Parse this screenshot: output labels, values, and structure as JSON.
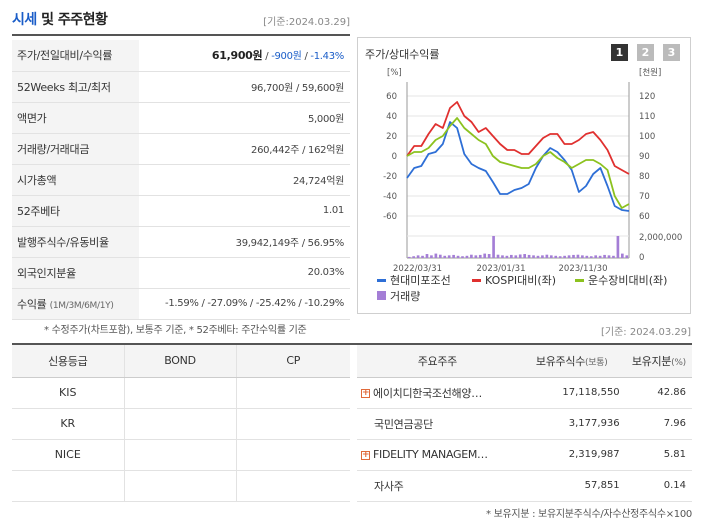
{
  "header": {
    "title_accent": "시세",
    "title_rest": " 및 주주현황",
    "date": "[기준:2024.03.29]"
  },
  "info_rows": [
    {
      "label": "주가/전일대비/수익률",
      "price": "61,900원",
      "sep1": " / ",
      "change": "-900원",
      "sep2": " / ",
      "rate": "-1.43%"
    },
    {
      "label": "52Weeks 최고/최저",
      "value": "96,700원 / 59,600원"
    },
    {
      "label": "액면가",
      "value": "5,000원"
    },
    {
      "label": "거래량/거래대금",
      "value": "260,442주 / 162억원"
    },
    {
      "label": "시가총액",
      "value": "24,724억원"
    },
    {
      "label": "52주베타",
      "value": "1.01"
    },
    {
      "label": "발행주식수/유동비율",
      "value": "39,942,149주 / 56.95%"
    },
    {
      "label": "외국인지분율",
      "value": "20.03%"
    },
    {
      "label": "수익률",
      "sub": "(1M/3M/6M/1Y)",
      "value": "-1.59% / -27.09% / -25.42% / -10.29%"
    }
  ],
  "note1": "* 수정주가(차트포함), 보통주 기준, * 52주베타: 주간수익률 기준",
  "chart_panel": {
    "title": "주가/상대수익률",
    "pages": [
      "1",
      "2",
      "3"
    ]
  },
  "chart_data": {
    "type": "line",
    "left_axis_unit": "[%]",
    "right_axis_unit": "[천원]",
    "left_ticks": [
      "60",
      "40",
      "20",
      "0",
      "-20",
      "-40",
      "-60"
    ],
    "right_ticks": [
      "120",
      "110",
      "100",
      "90",
      "80",
      "70",
      "60"
    ],
    "volume_ticks": [
      "2,000,000",
      "0"
    ],
    "x_labels": [
      "2022/03/31",
      "2023/01/31",
      "2023/11/30"
    ],
    "ylim_left": [
      -60,
      60
    ],
    "ylim_right": [
      60,
      120
    ],
    "series": [
      {
        "name": "현대미포조선",
        "color": "#2e6fd6",
        "values": [
          -22,
          -12,
          -10,
          2,
          4,
          12,
          34,
          28,
          2,
          -8,
          -12,
          -15,
          -26,
          -38,
          -38,
          -34,
          -32,
          -28,
          -12,
          0,
          8,
          4,
          -4,
          -14,
          -36,
          -30,
          -18,
          -12,
          -30,
          -50,
          -54,
          -55
        ]
      },
      {
        "name": "KOSPI대비(좌)",
        "color": "#e0302f",
        "values": [
          0,
          10,
          10,
          22,
          32,
          28,
          48,
          54,
          40,
          34,
          24,
          28,
          20,
          12,
          6,
          6,
          2,
          2,
          10,
          18,
          22,
          22,
          12,
          12,
          16,
          22,
          24,
          16,
          6,
          -10,
          -14,
          -18
        ]
      },
      {
        "name": "운수장비대비(좌)",
        "color": "#8cc21f",
        "values": [
          0,
          4,
          4,
          8,
          16,
          20,
          30,
          38,
          28,
          22,
          16,
          12,
          0,
          -6,
          -8,
          -10,
          -12,
          -12,
          -8,
          0,
          4,
          -2,
          -6,
          -12,
          -8,
          -4,
          -4,
          -8,
          -14,
          -40,
          -52,
          -48
        ]
      }
    ],
    "volume": {
      "name": "거래량",
      "color": "#a47ed6",
      "values": [
        0.05,
        0.08,
        0.12,
        0.1,
        0.18,
        0.12,
        0.2,
        0.15,
        0.1,
        0.12,
        0.14,
        0.1,
        0.08,
        0.1,
        0.15,
        0.12,
        0.14,
        0.2,
        0.18,
        1,
        0.15,
        0.12,
        0.1,
        0.14,
        0.12,
        0.16,
        0.18,
        0.14,
        0.12,
        0.1,
        0.12,
        0.15,
        0.12,
        0.1,
        0.08,
        0.1,
        0.12,
        0.14,
        0.15,
        0.12,
        0.1,
        0.08,
        0.12,
        0.1,
        0.14,
        0.12,
        0.1,
        1,
        0.2,
        0.12
      ]
    }
  },
  "date2": "[기준: 2024.03.29]",
  "credit": {
    "headers": [
      "신용등급",
      "BOND",
      "CP"
    ],
    "rows": [
      {
        "agency": "KIS",
        "bond": "",
        "cp": ""
      },
      {
        "agency": "KR",
        "bond": "",
        "cp": ""
      },
      {
        "agency": "NICE",
        "bond": "",
        "cp": ""
      }
    ]
  },
  "holders": {
    "headers": [
      "주요주주",
      "보유주식수",
      "(보통)",
      "보유지분",
      "(%)"
    ],
    "rows": [
      {
        "name": "에이치디한국조선해양…",
        "shares": "17,118,550",
        "pct": "42.86",
        "expand": true
      },
      {
        "name": "국민연금공단",
        "shares": "3,177,936",
        "pct": "7.96",
        "expand": false
      },
      {
        "name": "FIDELITY MANAGEM…",
        "shares": "2,319,987",
        "pct": "5.81",
        "expand": true
      },
      {
        "name": "자사주",
        "shares": "57,851",
        "pct": "0.14",
        "expand": false
      }
    ]
  },
  "note2": "* 보유지분 : 보유지분주식수/자수산정주식수×100"
}
